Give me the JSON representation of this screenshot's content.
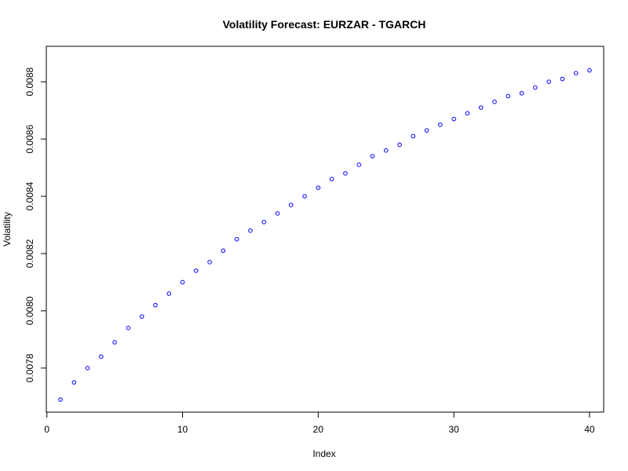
{
  "chart_data": {
    "type": "scatter",
    "title": "Volatility Forecast: EURZAR - TGARCH",
    "xlabel": "Index",
    "ylabel": "Volatility",
    "xlim": [
      0,
      41
    ],
    "ylim": [
      0.00769,
      0.00888
    ],
    "x_ticks": [
      0,
      10,
      20,
      30,
      40
    ],
    "y_ticks": [
      0.0078,
      0.008,
      0.0082,
      0.0084,
      0.0086,
      0.0088
    ],
    "x_tick_labels": [
      "0",
      "10",
      "20",
      "30",
      "40"
    ],
    "y_tick_labels": [
      "0.0078",
      "0.0080",
      "0.0082",
      "0.0084",
      "0.0086",
      "0.0088"
    ],
    "point_color": "#0000ff",
    "marker": "open-circle",
    "grid": false,
    "series": [
      {
        "x": [
          1,
          2,
          3,
          4,
          5,
          6,
          7,
          8,
          9,
          10,
          11,
          12,
          13,
          14,
          15,
          16,
          17,
          18,
          19,
          20,
          21,
          22,
          23,
          24,
          25,
          26,
          27,
          28,
          29,
          30,
          31,
          32,
          33,
          34,
          35,
          36,
          37,
          38,
          39,
          40
        ],
        "values": [
          0.00769,
          0.00775,
          0.0078,
          0.00784,
          0.00789,
          0.00794,
          0.00798,
          0.00802,
          0.00806,
          0.0081,
          0.00814,
          0.00817,
          0.00821,
          0.00825,
          0.00828,
          0.00831,
          0.00834,
          0.00837,
          0.0084,
          0.00843,
          0.00846,
          0.00848,
          0.00851,
          0.00854,
          0.00856,
          0.00858,
          0.00861,
          0.00863,
          0.00865,
          0.00867,
          0.00869,
          0.00871,
          0.00873,
          0.00875,
          0.00876,
          0.00878,
          0.0088,
          0.00881,
          0.00883,
          0.00884
        ]
      }
    ]
  }
}
